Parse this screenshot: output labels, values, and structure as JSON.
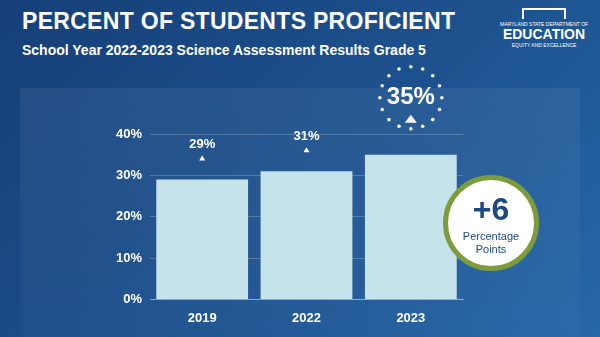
{
  "chart_data": {
    "type": "bar",
    "title": "PERCENT OF STUDENTS PROFICIENT",
    "subtitle": "School Year 2022-2023 Science Assessment Results Grade 5",
    "logo": [
      "MARYLAND STATE DEPARTMENT OF",
      "EDUCATION",
      "EQUITY AND EXCELLENCE"
    ],
    "annotations": [
      "+6",
      "Percentage Points"
    ],
    "categories": [
      "2019",
      "2022",
      "2023"
    ],
    "values": [
      29,
      31,
      35
    ],
    "value_labels": [
      "29%",
      "31%",
      "35%"
    ],
    "data_labels": true,
    "color": "#c6e2ea",
    "ylim": [
      0,
      40
    ],
    "yticks": [
      {
        "value": 0,
        "label": "0%"
      },
      {
        "value": 10,
        "label": "10%"
      },
      {
        "value": 20,
        "label": "20%"
      },
      {
        "value": 30,
        "label": "30%"
      },
      {
        "value": 40,
        "label": "40%"
      }
    ],
    "grid": true
  }
}
